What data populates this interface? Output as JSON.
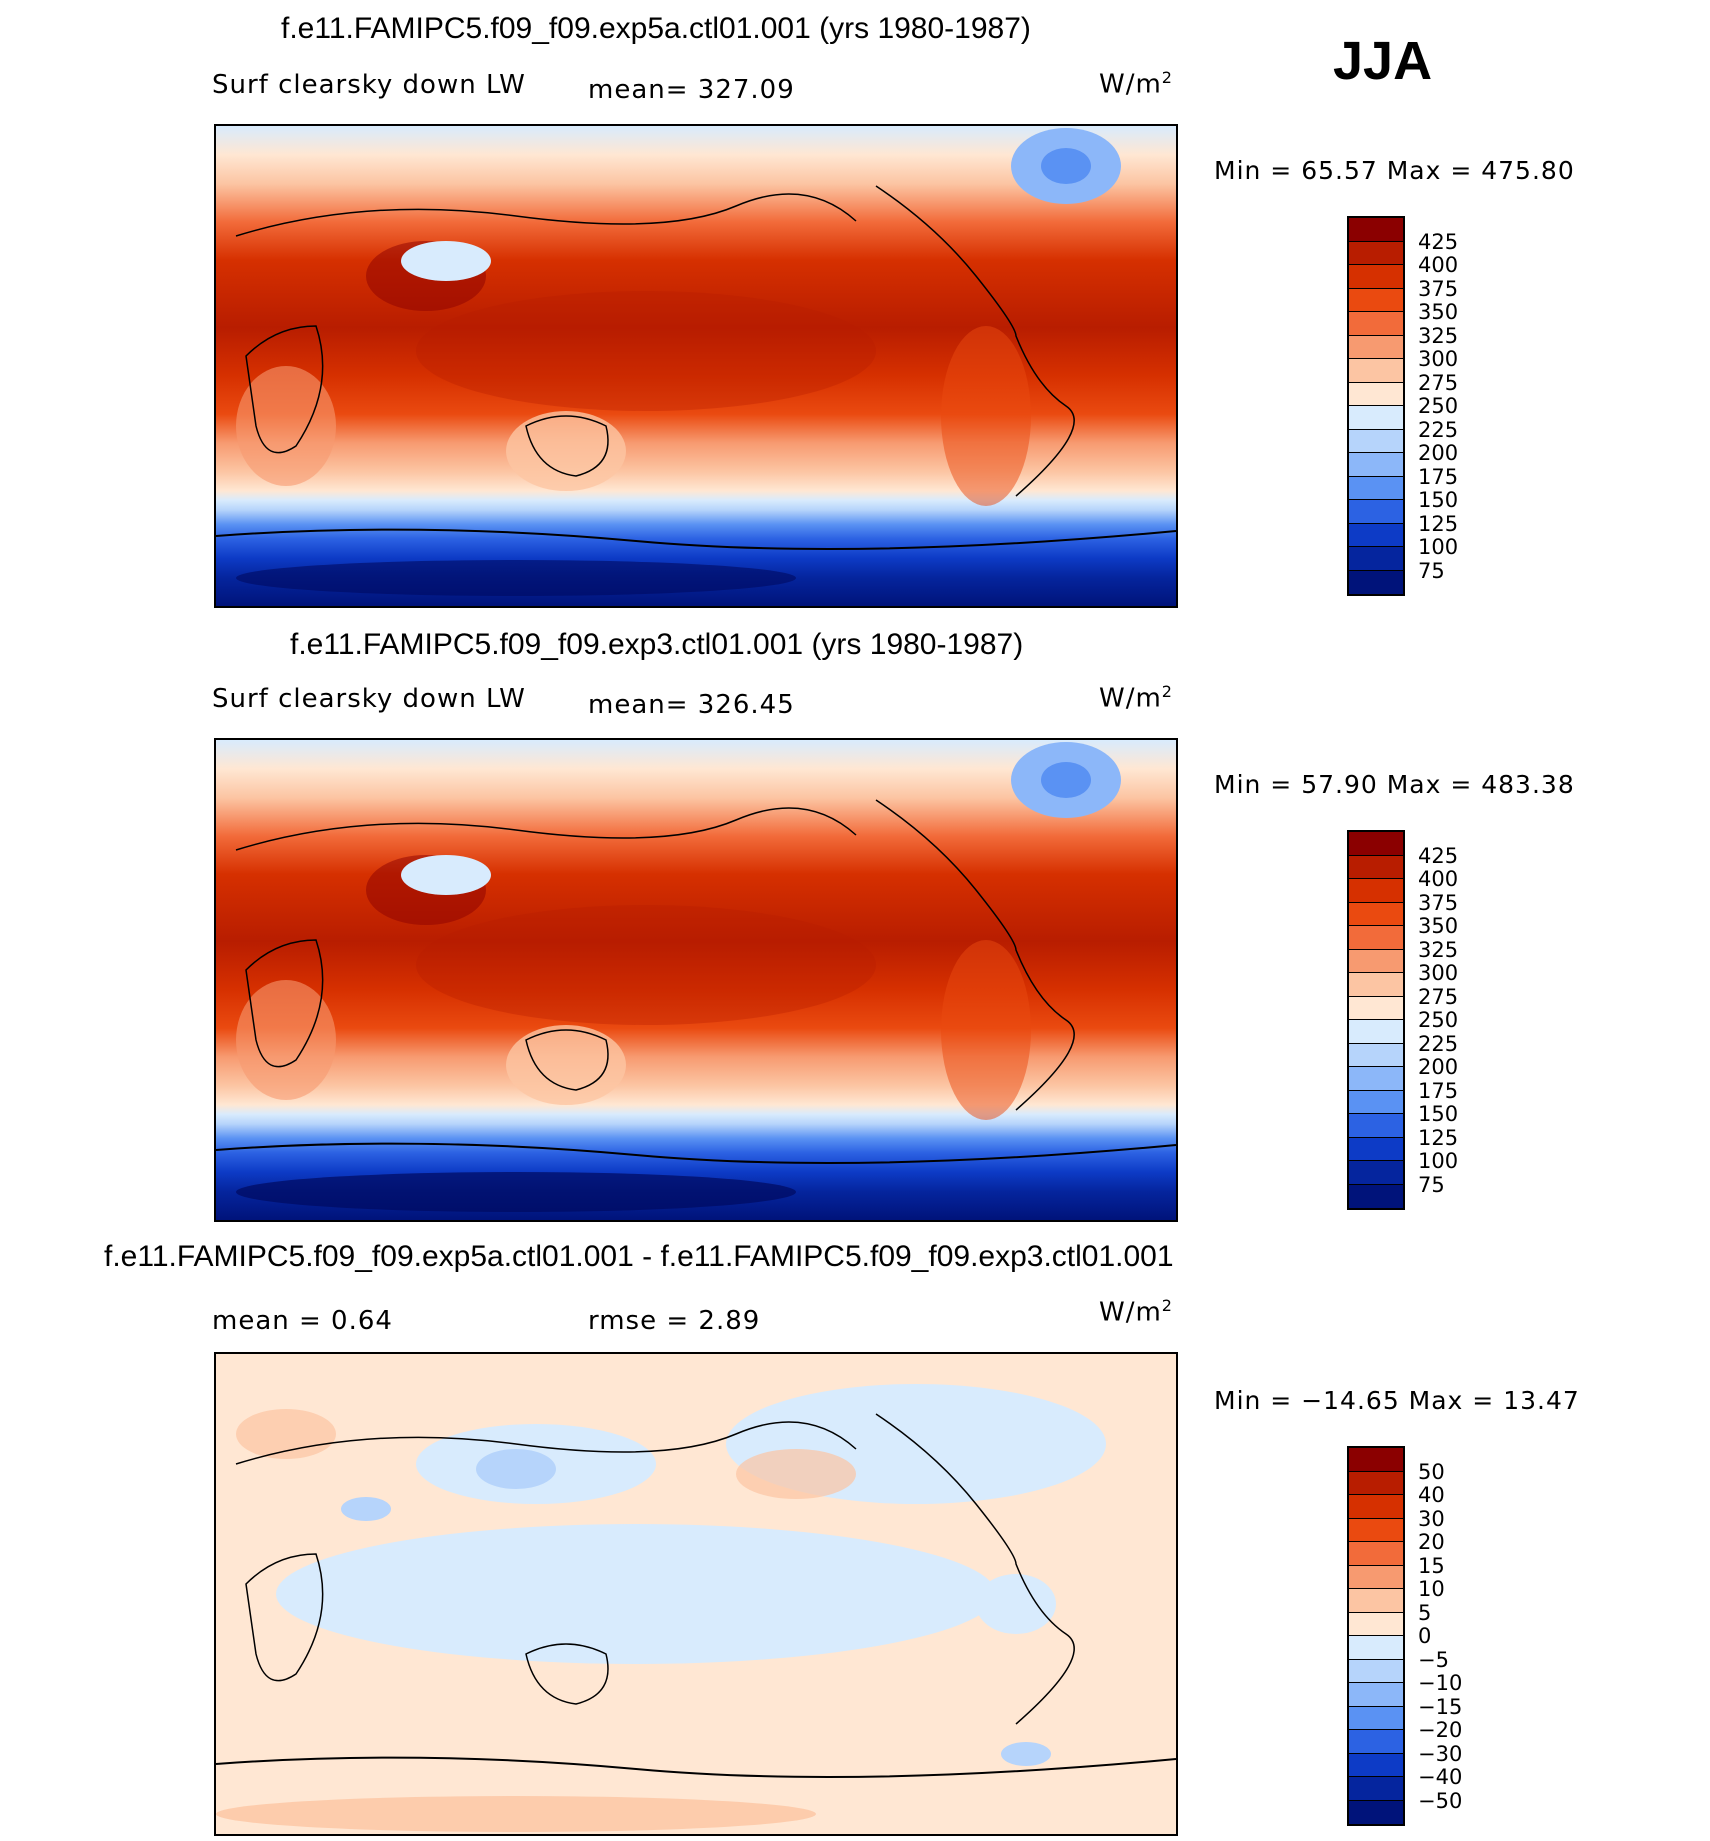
{
  "season": "JJA",
  "panels": [
    {
      "id": "exp5a",
      "title": "f.e11.FAMIPC5.f09_f09.exp5a.ctl01.001 (yrs 1980-1987)",
      "variable": "Surf clearsky down LW",
      "stat_text": "mean=  327.09",
      "units_base": "W/m",
      "units_sup": "2",
      "minmax": "Min =   65.57  Max = 475.80",
      "colorbar": {
        "labels": [
          "425",
          "400",
          "375",
          "350",
          "325",
          "300",
          "275",
          "250",
          "225",
          "200",
          "175",
          "150",
          "125",
          "100",
          "75"
        ],
        "colors": [
          "#8b0000",
          "#b81d00",
          "#d63000",
          "#ea4a10",
          "#f26b3a",
          "#f79a70",
          "#fcc5a3",
          "#ffe7d3",
          "#d8ebfd",
          "#b6d4fb",
          "#8cb7f9",
          "#5a92f3",
          "#2c62e3",
          "#0d3bc6",
          "#05259e",
          "#00137a"
        ]
      }
    },
    {
      "id": "exp3",
      "title": "f.e11.FAMIPC5.f09_f09.exp3.ctl01.001 (yrs 1980-1987)",
      "variable": "Surf clearsky down LW",
      "stat_text": "mean=  326.45",
      "units_base": "W/m",
      "units_sup": "2",
      "minmax": "Min =   57.90  Max = 483.38",
      "colorbar": {
        "labels": [
          "425",
          "400",
          "375",
          "350",
          "325",
          "300",
          "275",
          "250",
          "225",
          "200",
          "175",
          "150",
          "125",
          "100",
          "75"
        ],
        "colors": [
          "#8b0000",
          "#b81d00",
          "#d63000",
          "#ea4a10",
          "#f26b3a",
          "#f79a70",
          "#fcc5a3",
          "#ffe7d3",
          "#d8ebfd",
          "#b6d4fb",
          "#8cb7f9",
          "#5a92f3",
          "#2c62e3",
          "#0d3bc6",
          "#05259e",
          "#00137a"
        ]
      }
    },
    {
      "id": "diff",
      "title": "f.e11.FAMIPC5.f09_f09.exp5a.ctl01.001 - f.e11.FAMIPC5.f09_f09.exp3.ctl01.001",
      "stat_text": "mean =    0.64",
      "rmse_text": "rmse =    2.89",
      "units_base": "W/m",
      "units_sup": "2",
      "minmax": "Min = −14.65  Max =   13.47",
      "colorbar": {
        "labels": [
          "50",
          "40",
          "30",
          "20",
          "15",
          "10",
          "5",
          "0",
          "−5",
          "−10",
          "−15",
          "−20",
          "−30",
          "−40",
          "−50"
        ],
        "colors": [
          "#8b0000",
          "#b81d00",
          "#d63000",
          "#ea4a10",
          "#f26b3a",
          "#f79a70",
          "#fcc5a3",
          "#ffe7d3",
          "#d8ebfd",
          "#b6d4fb",
          "#8cb7f9",
          "#5a92f3",
          "#2c62e3",
          "#0d3bc6",
          "#05259e",
          "#00137a"
        ]
      }
    }
  ]
}
